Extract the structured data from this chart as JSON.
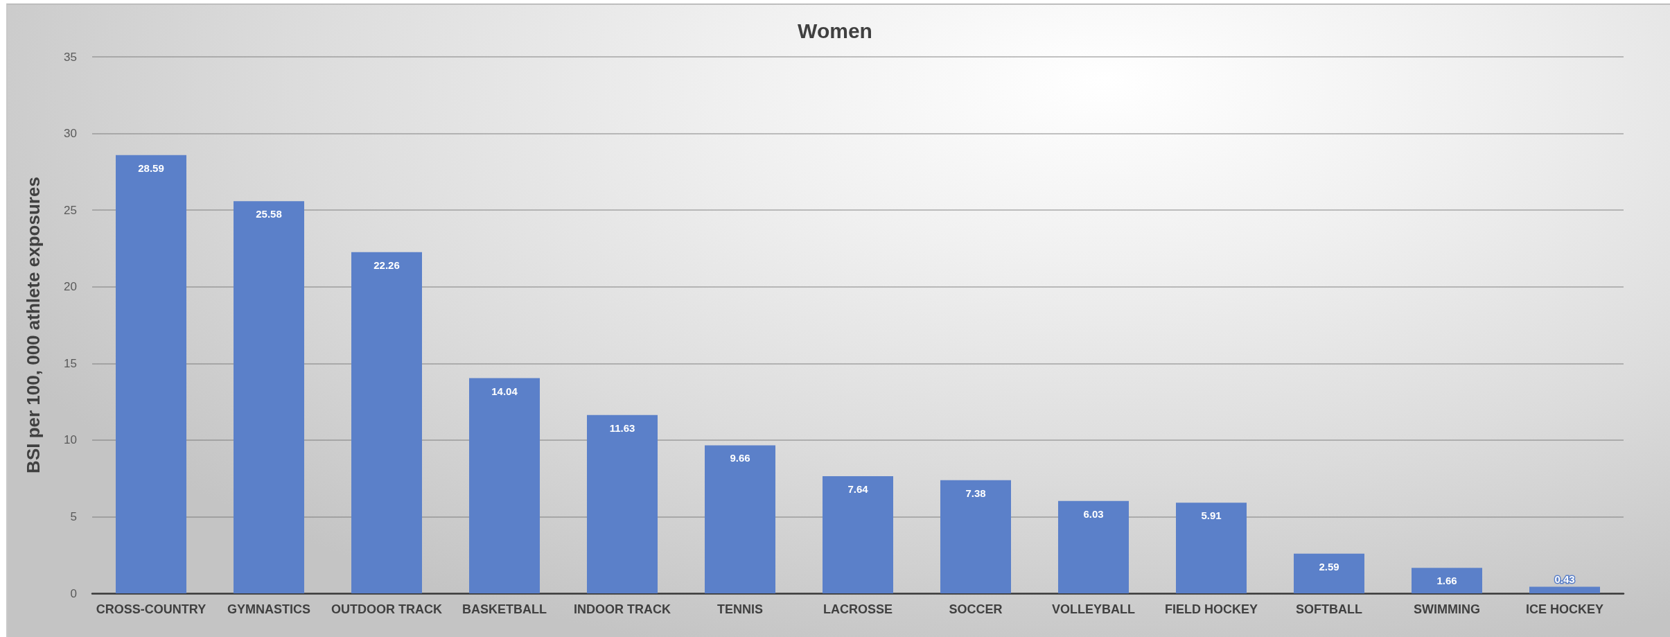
{
  "chart_data": {
    "type": "bar",
    "title": "Women",
    "ylabel": "BSI per 100, 000 athlete exposures",
    "categories": [
      "CROSS-COUNTRY",
      "GYMNASTICS",
      "OUTDOOR TRACK",
      "BASKETBALL",
      "INDOOR TRACK",
      "TENNIS",
      "LACROSSE",
      "SOCCER",
      "VOLLEYBALL",
      "FIELD HOCKEY",
      "SOFTBALL",
      "SWIMMING",
      "ICE HOCKEY"
    ],
    "values": [
      28.59,
      25.58,
      22.26,
      14.04,
      11.63,
      9.66,
      7.64,
      7.38,
      6.03,
      5.91,
      2.59,
      1.66,
      0.43
    ],
    "color": "#5b80c9",
    "ylim": [
      0,
      35
    ],
    "yticks": [
      0,
      5,
      10,
      15,
      20,
      25,
      30,
      35
    ],
    "grid": "y",
    "data_labels": true
  }
}
